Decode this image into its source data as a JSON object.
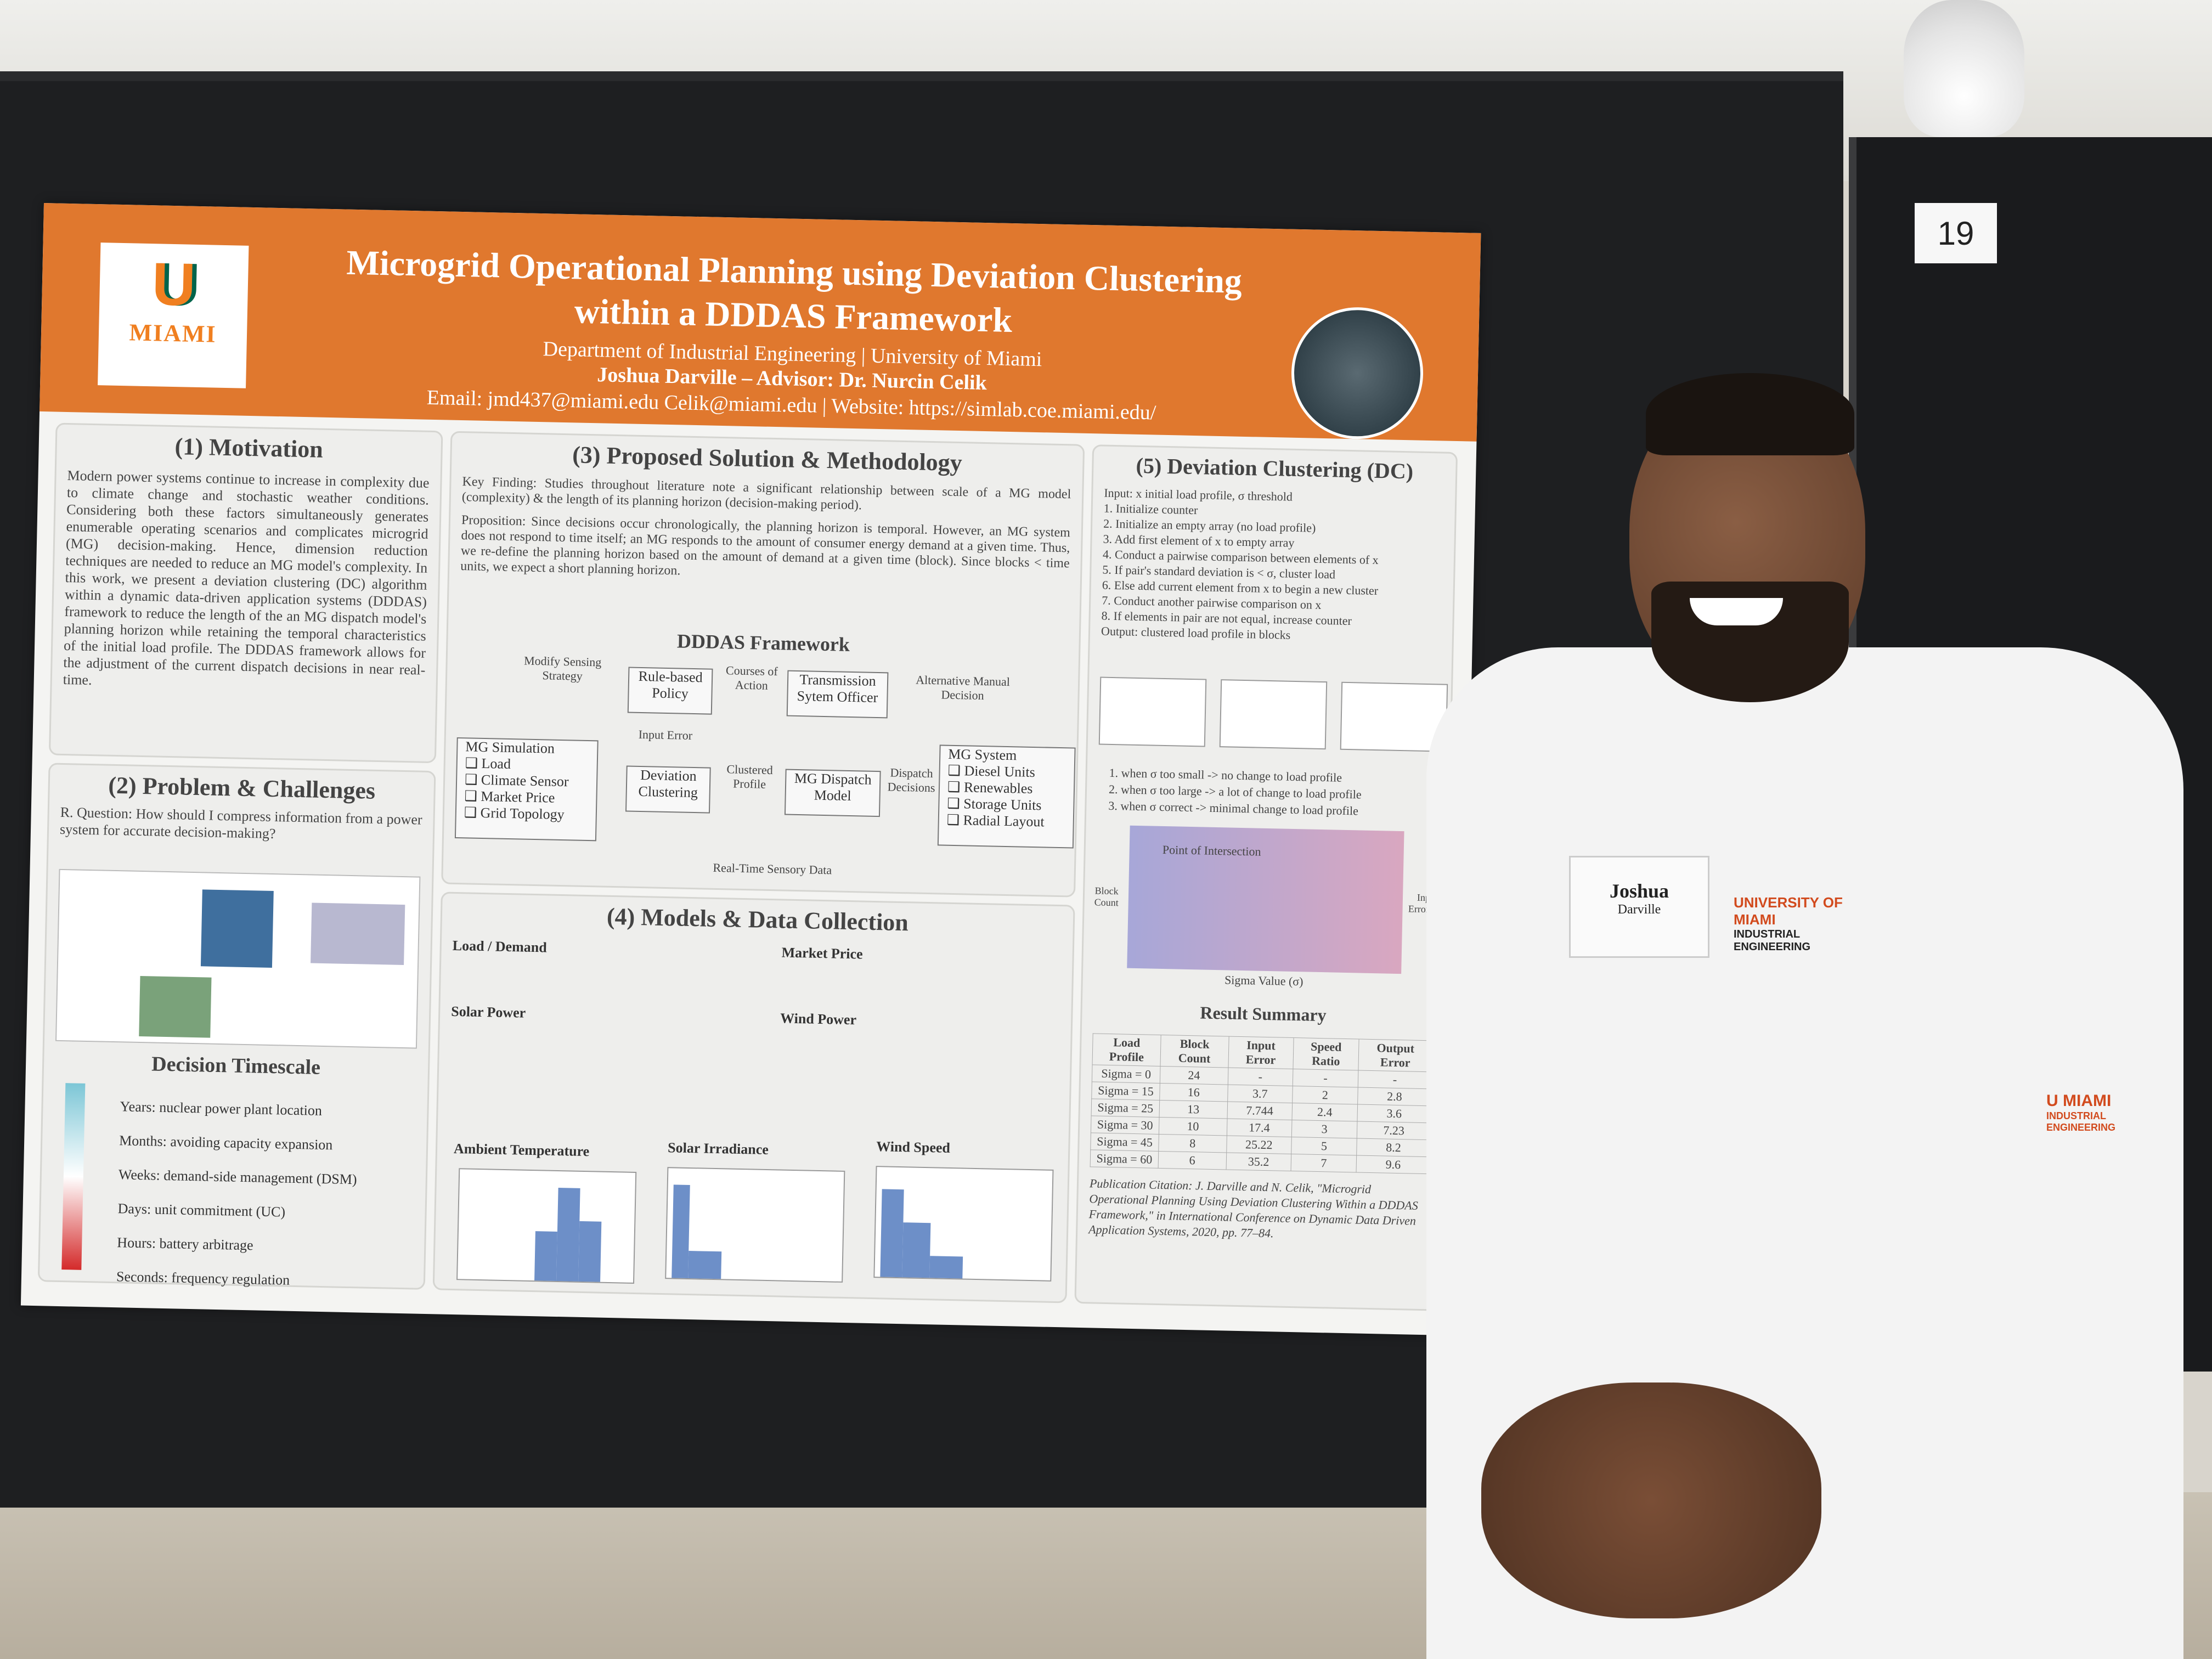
{
  "sign": {
    "booth_number": "19"
  },
  "poster": {
    "logo_text": "MIAMI",
    "title_line1": "Microgrid Operational Planning using Deviation Clustering",
    "title_line2": "within a DDDAS Framework",
    "department": "Department of Industrial Engineering | University of Miami",
    "author": "Joshua Darville – Advisor: Dr. Nurcin Celik",
    "contact": "Email: jmd437@miami.edu  Celik@miami.edu | Website: https://simlab.coe.miami.edu/",
    "motivation": {
      "heading": "(1) Motivation",
      "text": "Modern power systems continue to increase in complexity due to climate change and stochastic weather conditions. Considering both these factors simultaneously generates enumerable operating scenarios and complicates microgrid (MG) decision-making. Hence, dimension reduction techniques are needed to reduce an MG model's complexity. In this work, we present a deviation clustering (DC) algorithm within a dynamic data-driven application systems (DDDAS) framework to reduce the length of the an MG dispatch model's planning horizon while retaining the temporal characteristics of the initial load profile. The DDDAS framework allows for the adjustment of the current dispatch decisions in near real-time."
    },
    "problem": {
      "heading": "(2) Problem & Challenges",
      "question": "R. Question: How should I compress information from a power system for accurate decision-making?",
      "timescale_heading": "Decision Timescale",
      "timescale": [
        "Years: nuclear power plant location",
        "Months: avoiding capacity expansion",
        "Weeks: demand-side management (DSM)",
        "Days: unit commitment (UC)",
        "Hours: battery arbitrage",
        "Seconds: frequency regulation"
      ]
    },
    "solution": {
      "heading": "(3) Proposed Solution & Methodology",
      "key_finding": "Key Finding: Studies throughout literature note a significant relationship between scale of a MG model (complexity) & the length of its planning horizon (decision-making period).",
      "proposition": "Proposition: Since decisions occur chronologically, the planning horizon is temporal. However, an MG system does not respond to time itself; an MG responds to the amount of consumer energy demand at a given time. Thus, we re-define the planning horizon based on the amount of demand at a given time (block). Since blocks < time units, we expect a short planning horizon.",
      "framework_title": "DDDAS Framework",
      "boxes": {
        "rule_policy": "Rule-based Policy",
        "transmission": "Transmission Sytem Officer",
        "mg_sim": "MG Simulation",
        "mg_sim_items": [
          "❑ Load",
          "❑ Climate Sensor",
          "❑ Market Price",
          "❑ Grid Topology"
        ],
        "deviation": "Deviation Clustering",
        "dispatch": "MG Dispatch Model",
        "mg_system": "MG System",
        "mg_system_items": [
          "❑ Diesel Units",
          "❑ Renewables",
          "❑ Storage Units",
          "❑ Radial Layout"
        ]
      },
      "labels": {
        "modify": "Modify Sensing Strategy",
        "courses": "Courses of Action",
        "alternative": "Alternative Manual Decision",
        "input_error": "Input Error",
        "clustered": "Clustered Profile",
        "dispatch_decisions": "Dispatch Decisions",
        "realtime": "Real-Time Sensory Data"
      }
    },
    "models": {
      "heading": "(4) Models & Data Collection",
      "load_label": "Load / Demand",
      "market_label": "Market Price",
      "solar_label": "Solar Power",
      "wind_label": "Wind Power",
      "hist1": "Ambient Temperature",
      "hist2": "Solar Irradiance",
      "hist3": "Wind Speed"
    },
    "clustering": {
      "heading": "(5) Deviation Clustering (DC)",
      "steps": [
        "Input: x initial load profile, σ threshold",
        "1. Initialize counter",
        "2. Initialize an empty array (no load profile)",
        "3. Add first element of x to empty array",
        "4. Conduct a pairwise comparison between elements of x",
        "5.   If pair's standard deviation is < σ, cluster load",
        "6.   Else add current element from x to begin a new cluster",
        "7. Conduct another pairwise comparison on x",
        "8.   If elements in pair are not equal, increase counter",
        "Output: clustered load profile in blocks"
      ],
      "cases": [
        "1.  when σ too small -> no change to load profile",
        "2.  when σ too large -> a lot of change to load profile",
        "3.  when σ correct -> minimal change to load profile"
      ],
      "intersection": "Point of Intersection",
      "xaxis": "Sigma Value (σ)",
      "yleft": "Block Count",
      "yright": "Input Error (%)",
      "result_title": "Result Summary",
      "table_headers": [
        "Load Profile",
        "Block Count",
        "Input Error",
        "Speed Ratio",
        "Output Error"
      ],
      "table_rows": [
        [
          "Sigma = 0",
          "24",
          "-",
          "-",
          "-"
        ],
        [
          "Sigma = 15",
          "16",
          "3.7",
          "2",
          "2.8"
        ],
        [
          "Sigma = 25",
          "13",
          "7.744",
          "2.4",
          "3.6"
        ],
        [
          "Sigma = 30",
          "10",
          "17.4",
          "3",
          "7.23"
        ],
        [
          "Sigma = 45",
          "8",
          "25.22",
          "5",
          "8.2"
        ],
        [
          "Sigma = 60",
          "6",
          "35.2",
          "7",
          "9.6"
        ]
      ],
      "citation": "Publication Citation: J. Darville and N. Celik, \"Microgrid Operational Planning Using Deviation Clustering Within a DDDAS Framework,\" in International Conference on Dynamic Data Driven Application Systems, 2020, pp. 77–84."
    }
  },
  "person": {
    "name_tag_first": "Joshua",
    "name_tag_last": "Darville",
    "shirt_logo_line1": "UNIVERSITY OF MIAMI",
    "shirt_logo_line2": "INDUSTRIAL ENGINEERING",
    "sleeve_logo_line1": "U MIAMI",
    "sleeve_logo_line2": "INDUSTRIAL ENGINEERING"
  },
  "colors": {
    "header_orange": "#e0782e",
    "miami_green": "#00644b",
    "miami_orange": "#f07f20"
  }
}
